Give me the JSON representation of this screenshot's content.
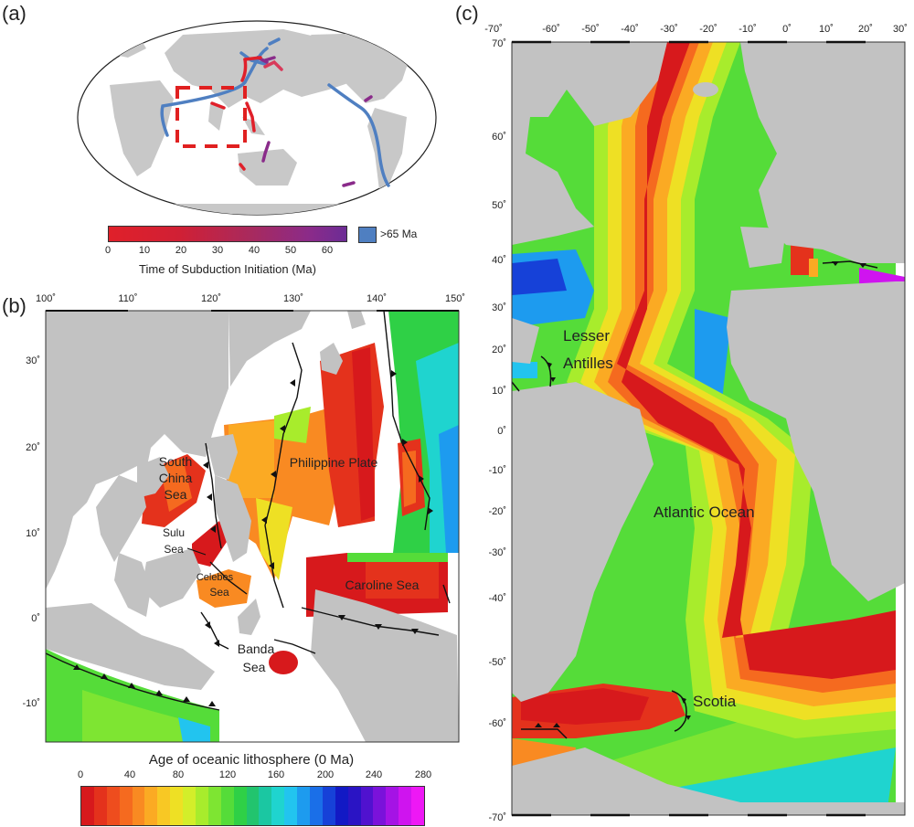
{
  "panels": {
    "a": "(a)",
    "b": "(b)",
    "c": "(c)"
  },
  "panel_a": {
    "colorbar_ticks": [
      "0",
      "10",
      "20",
      "30",
      "40",
      "50",
      "60"
    ],
    "colorbar_title": "Time of Subduction Initiation (Ma)",
    "old_label": ">65 Ma",
    "colors": {
      "young": "#e0202a",
      "old": "#8a2b8a",
      "oldest": "#4f7fc1"
    }
  },
  "panel_b": {
    "lon_ticks": [
      "100˚",
      "110˚",
      "120˚",
      "130˚",
      "140˚",
      "150˚"
    ],
    "lat_ticks": [
      "30˚",
      "20˚",
      "10˚",
      "0˚",
      "-10˚"
    ],
    "labels": {
      "south_china_sea": [
        "South",
        "China",
        "Sea"
      ],
      "philippine_plate": "Philippine Plate",
      "sulu_sea": [
        "Sulu",
        "Sea"
      ],
      "celebes_sea": [
        "Celebes",
        "Sea"
      ],
      "caroline_sea": "Caroline Sea",
      "banda_sea": [
        "Banda",
        "Sea"
      ]
    },
    "colorbar_title": "Age of oceanic lithosphere (0 Ma)",
    "colorbar_ticks": [
      "0",
      "40",
      "80",
      "120",
      "160",
      "200",
      "240",
      "280"
    ]
  },
  "panel_c": {
    "lon_ticks": [
      "-70˚",
      "-60˚",
      "-50˚",
      "-40˚",
      "-30˚",
      "-20˚",
      "-10˚",
      "0˚",
      "10˚",
      "20˚",
      "30˚"
    ],
    "lat_ticks": [
      "70˚",
      "60˚",
      "50˚",
      "40˚",
      "30˚",
      "20˚",
      "10˚",
      "0˚",
      "-10˚",
      "-20˚",
      "-30˚",
      "-40˚",
      "-50˚",
      "-60˚",
      "-70˚"
    ],
    "labels": {
      "lesser_antilles": [
        "Lesser",
        "Antilles"
      ],
      "atlantic_ocean": "Atlantic Ocean",
      "scotia": "Scotia"
    }
  },
  "age_colors": [
    "#d7191c",
    "#e4321c",
    "#ee4d1e",
    "#f56a1f",
    "#f98a22",
    "#fbaa23",
    "#f8c824",
    "#eee024",
    "#d3ee2a",
    "#a8ec2c",
    "#7ee532",
    "#55dc39",
    "#2fd046",
    "#22c46e",
    "#1bc7a2",
    "#1fd4cf",
    "#22c4ef",
    "#1d9bef",
    "#1a6fe8",
    "#1641d8",
    "#1219c5",
    "#2a14c4",
    "#5012cf",
    "#7a12da",
    "#a513e5",
    "#cf14ef",
    "#ee18f5"
  ]
}
